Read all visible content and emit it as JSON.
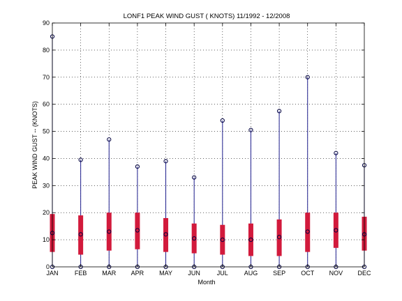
{
  "chart_data": {
    "type": "box",
    "title": "LONF1  PEAK WIND GUST ( KNOTS) 11/1992 - 12/2008",
    "xlabel": "Month",
    "ylabel": "PEAK WIND GUST  --  (KNOTS)",
    "ylim": [
      0,
      90
    ],
    "yticks": [
      0,
      10,
      20,
      30,
      40,
      50,
      60,
      70,
      80,
      90
    ],
    "grid": true,
    "categories": [
      "JAN",
      "FEB",
      "MAR",
      "APR",
      "MAY",
      "JUN",
      "JUL",
      "AUG",
      "SEP",
      "OCT",
      "NOV",
      "DEC"
    ],
    "min": [
      0,
      0,
      0,
      0,
      0,
      0,
      0,
      0,
      0,
      0,
      0,
      0
    ],
    "q1": [
      5.5,
      4.5,
      6,
      6.5,
      5.5,
      5,
      4.5,
      4,
      4,
      5.5,
      7,
      6
    ],
    "median": [
      12.5,
      12,
      13,
      13.5,
      12,
      10.5,
      10,
      10,
      11,
      13,
      13.5,
      12
    ],
    "q3": [
      19.5,
      19,
      20,
      20,
      18,
      16,
      15.5,
      16,
      17.5,
      20,
      20,
      18.5
    ],
    "max": [
      85,
      39.5,
      47,
      37,
      39,
      33,
      54,
      50.5,
      57.5,
      70,
      42,
      37.5
    ],
    "colors": {
      "whisker": "#1c1c8c",
      "box": "#d21a3c",
      "marker": "#000040",
      "grid": "#000000"
    }
  }
}
